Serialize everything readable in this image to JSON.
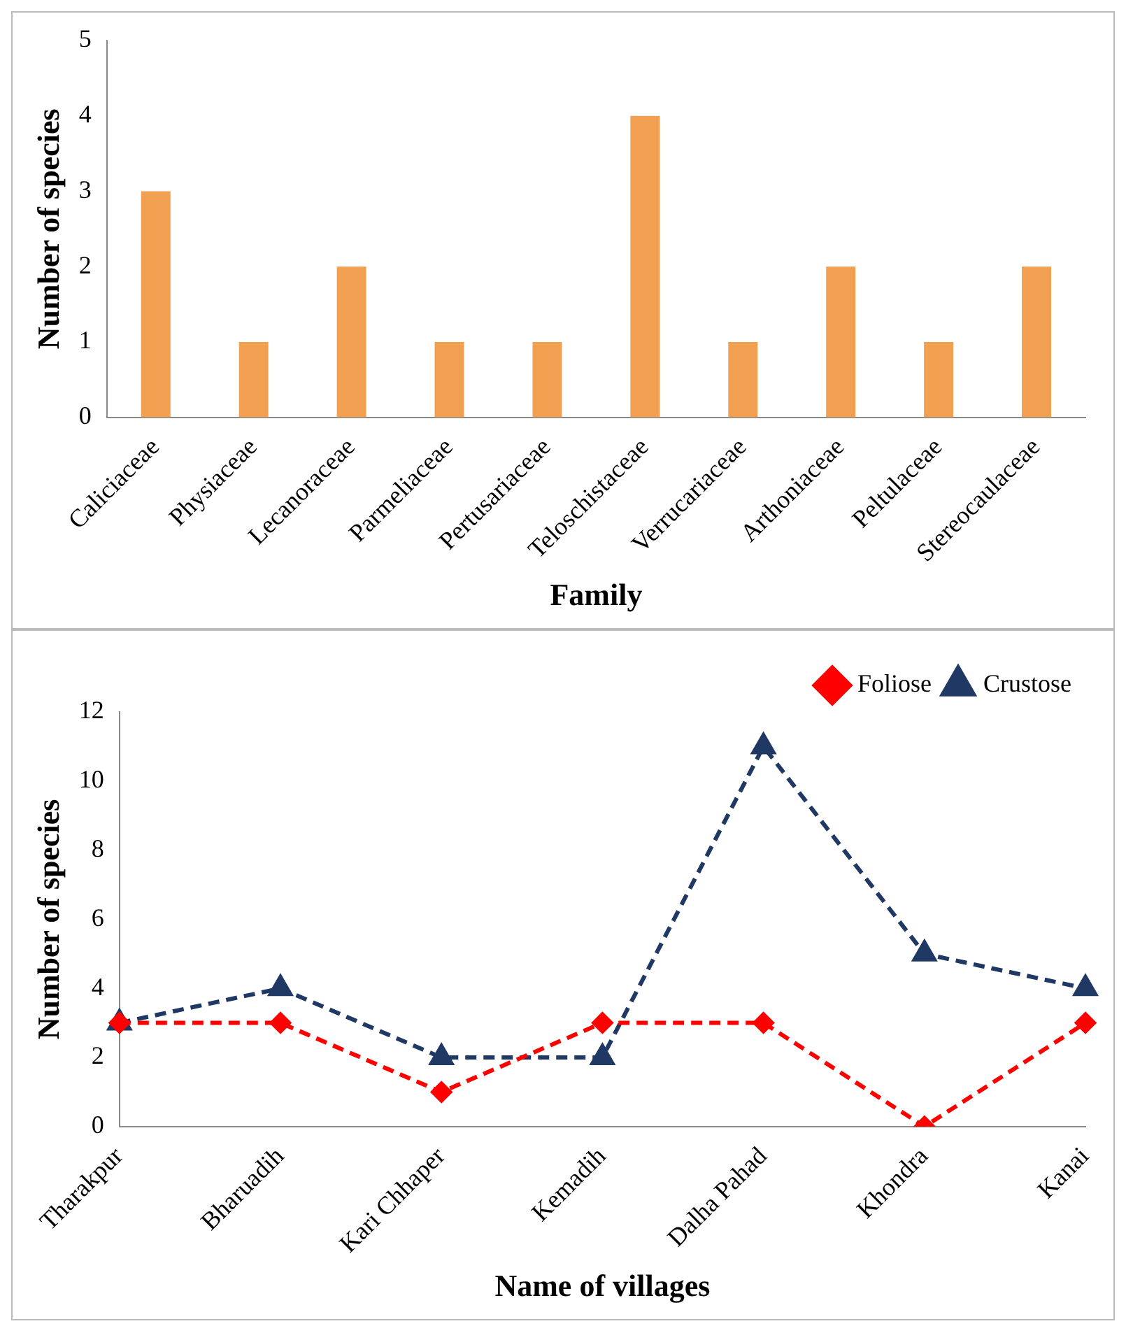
{
  "chart_data": [
    {
      "type": "bar",
      "xlabel": "Family",
      "ylabel": "Number of species",
      "categories": [
        "Caliciaceae",
        "Physiaceae",
        "Lecanoraceae",
        "Parmeliaceae",
        "Pertusariaceae",
        "Teloschistaceae",
        "Verrucariaceae",
        "Arthoniaceae",
        "Peltulaceae",
        "Stereocaulaceae"
      ],
      "values": [
        3,
        1,
        2,
        1,
        1,
        4,
        1,
        2,
        1,
        2
      ],
      "color": "#f0a050",
      "ylim": [
        0,
        5
      ],
      "yticks": [
        0,
        1,
        2,
        3,
        4,
        5
      ],
      "grid": false,
      "legend": false
    },
    {
      "type": "line",
      "xlabel": "Name of villages",
      "ylabel": "Number of species",
      "categories": [
        "Tharakpur",
        "Bharuadih",
        "Kari Chhaper",
        "Kemadih",
        "Dalha Pahad",
        "Khondra",
        "Kanai"
      ],
      "series": [
        {
          "name": "Crustose",
          "color": "#1f3864",
          "marker": "triangle",
          "values": [
            3,
            4,
            2,
            2,
            11,
            5,
            4
          ]
        },
        {
          "name": "Foliose",
          "color": "#ff0000",
          "marker": "diamond",
          "values": [
            3,
            3,
            1,
            3,
            3,
            0,
            3
          ]
        }
      ],
      "line_style": "dashed",
      "ylim": [
        0,
        12
      ],
      "yticks": [
        0,
        2,
        4,
        6,
        8,
        10,
        12
      ],
      "grid": false,
      "legend": "top right"
    }
  ]
}
